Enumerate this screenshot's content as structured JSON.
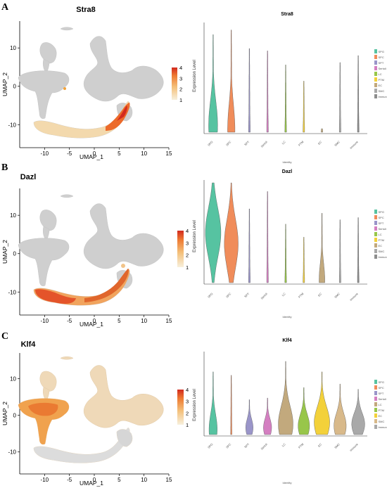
{
  "colors": {
    "umap_grey": "#cfcfcf",
    "feature_low": "#f6ddb0",
    "feature_mid": "#f2a33a",
    "feature_high": "#d62d1f"
  },
  "chart_data": [
    {
      "type": "scatter",
      "panel_label": "A",
      "title": "Stra8",
      "xlabel": "UMAP_1",
      "ylabel": "UMAP_2",
      "x_ticks": [
        -10,
        -5,
        0,
        5,
        10,
        15
      ],
      "y_ticks": [
        -10,
        0,
        10
      ],
      "xlim": [
        -15,
        15
      ],
      "ylim": [
        -16,
        17
      ],
      "colorbar": {
        "ticks": [
          1,
          2,
          3,
          4
        ],
        "range": [
          1,
          4
        ]
      },
      "highlight_region": "spermatogonia lower arc",
      "grid": false
    },
    {
      "type": "violin",
      "title": "Stra8",
      "ylabel": "Expression Level",
      "xlabel": "Identity",
      "categories": [
        "SPG",
        "SPC",
        "SPT",
        "Sertoli",
        "LC",
        "PTM",
        "EC",
        "SMC",
        "Immune"
      ],
      "legend_position": "right",
      "series": [
        {
          "name": "SPG",
          "color": "#56c3a1",
          "max": 4.2,
          "width": 0.55,
          "mode": 0.3
        },
        {
          "name": "SPC",
          "color": "#f08c5a",
          "max": 4.4,
          "width": 0.45,
          "mode": 0.1
        },
        {
          "name": "SPT",
          "color": "#9a95c9",
          "max": 3.6,
          "width": 0.1,
          "mode": 0.02
        },
        {
          "name": "Sertoli",
          "color": "#d47fc1",
          "max": 3.5,
          "width": 0.1,
          "mode": 0.02
        },
        {
          "name": "LC",
          "color": "#98c64a",
          "max": 2.9,
          "width": 0.1,
          "mode": 0.02
        },
        {
          "name": "PTM",
          "color": "#f3d13a",
          "max": 2.2,
          "width": 0.1,
          "mode": 0.02
        },
        {
          "name": "EC",
          "color": "#c2a97d",
          "max": 0.15,
          "width": 0.1,
          "mode": 0.02
        },
        {
          "name": "SMC",
          "color": "#a9a9a9",
          "max": 3.0,
          "width": 0.1,
          "mode": 0.02
        },
        {
          "name": "Immune",
          "color": "#8d8d8d",
          "max": 3.3,
          "width": 0.1,
          "mode": 0.02
        }
      ]
    },
    {
      "type": "scatter",
      "panel_label": "B",
      "title": "Dazl",
      "xlabel": "UMAP_1",
      "ylabel": "UMAP_2",
      "x_ticks": [
        -10,
        -5,
        0,
        5,
        10,
        15
      ],
      "y_ticks": [
        -10,
        0,
        10
      ],
      "xlim": [
        -15,
        15
      ],
      "ylim": [
        -16,
        17
      ],
      "colorbar": {
        "ticks": [
          1,
          2,
          3,
          4
        ],
        "range": [
          1,
          4
        ]
      },
      "grid": false
    },
    {
      "type": "violin",
      "title": "Dazl",
      "ylabel": "Expression Level",
      "xlabel": "Identity",
      "categories": [
        "SPG",
        "SPC",
        "SPT",
        "Sertoli",
        "LC",
        "PTM",
        "EC",
        "SMC",
        "Immune"
      ],
      "legend_position": "right",
      "series": [
        {
          "name": "SPG",
          "color": "#56c3a1",
          "max": 4.6,
          "width": 0.95,
          "mode": 2.3
        },
        {
          "name": "SPC",
          "color": "#f08c5a",
          "max": 4.6,
          "width": 0.85,
          "mode": 1.8
        },
        {
          "name": "SPT",
          "color": "#9a95c9",
          "max": 3.4,
          "width": 0.1,
          "mode": 0.02
        },
        {
          "name": "Sertoli",
          "color": "#d47fc1",
          "max": 4.2,
          "width": 0.1,
          "mode": 0.02
        },
        {
          "name": "LC",
          "color": "#98c64a",
          "max": 2.7,
          "width": 0.1,
          "mode": 0.02
        },
        {
          "name": "PTM",
          "color": "#f3d13a",
          "max": 2.1,
          "width": 0.1,
          "mode": 0.02
        },
        {
          "name": "EC",
          "color": "#c2a97d",
          "max": 3.2,
          "width": 0.35,
          "mode": 0.1
        },
        {
          "name": "SMC",
          "color": "#a9a9a9",
          "max": 2.9,
          "width": 0.1,
          "mode": 0.02
        },
        {
          "name": "Immune",
          "color": "#8d8d8d",
          "max": 3.0,
          "width": 0.1,
          "mode": 0.02
        }
      ]
    },
    {
      "type": "scatter",
      "panel_label": "C",
      "title": "Klf4",
      "xlabel": "UMAP_1",
      "ylabel": "UMAP_2",
      "x_ticks": [
        -10,
        -5,
        0,
        5,
        10,
        15
      ],
      "y_ticks": [
        -10,
        0,
        10
      ],
      "xlim": [
        -15,
        15
      ],
      "ylim": [
        -16,
        17
      ],
      "colorbar": {
        "ticks": [
          1,
          2,
          3,
          4
        ],
        "range": [
          1,
          4
        ]
      },
      "grid": false
    },
    {
      "type": "violin",
      "title": "Klf4",
      "ylabel": "Expression Level",
      "xlabel": "Identity",
      "categories": [
        "SPG",
        "SPC",
        "SPT",
        "Sertoli",
        "LC",
        "PTM",
        "EC",
        "SMC",
        "Immune"
      ],
      "legend_position": "right",
      "series": [
        {
          "name": "SPG",
          "color": "#56c3a1",
          "max": 3.6,
          "width": 0.5,
          "mode": 0.3
        },
        {
          "name": "SPC",
          "color": "#f08c5a",
          "max": 3.4,
          "width": 0.08,
          "mode": 0.02
        },
        {
          "name": "SPT",
          "color": "#9a95c9",
          "max": 2.0,
          "width": 0.45,
          "mode": 0.4
        },
        {
          "name": "Sertoli",
          "color": "#d47fc1",
          "max": 2.1,
          "width": 0.5,
          "mode": 0.4
        },
        {
          "name": "LC",
          "color": "#c2a97d",
          "max": 4.2,
          "width": 0.9,
          "mode": 0.6
        },
        {
          "name": "PTM",
          "color": "#98c64a",
          "max": 2.7,
          "width": 0.7,
          "mode": 0.5
        },
        {
          "name": "EC",
          "color": "#f3d13a",
          "max": 3.6,
          "width": 0.95,
          "mode": 0.7
        },
        {
          "name": "SMC",
          "color": "#d8b98a",
          "max": 2.9,
          "width": 0.75,
          "mode": 0.5
        },
        {
          "name": "Immune",
          "color": "#a9a9a9",
          "max": 2.6,
          "width": 0.8,
          "mode": 0.6
        }
      ]
    }
  ]
}
